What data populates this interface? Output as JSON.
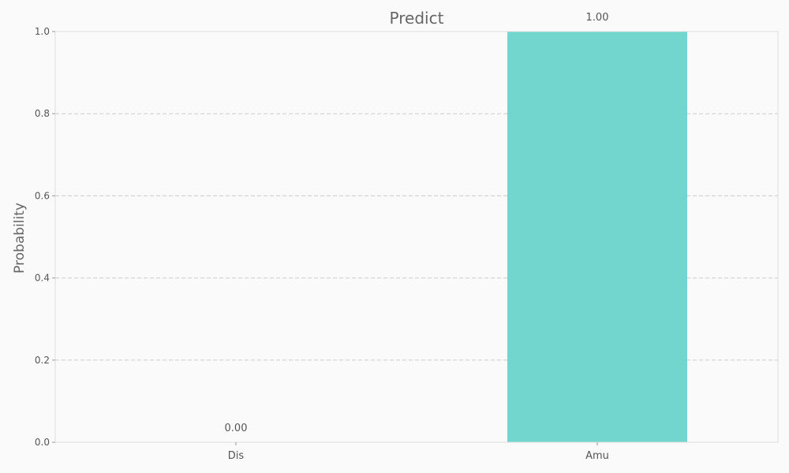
{
  "chart_data": {
    "type": "bar",
    "title": "Predict",
    "xlabel": "",
    "ylabel": "Probability",
    "categories": [
      "Dis",
      "Amu"
    ],
    "values": [
      0.0,
      1.0
    ],
    "value_labels": [
      "0.00",
      "1.00"
    ],
    "ylim": [
      0,
      1.0
    ],
    "yticks": [
      0.0,
      0.2,
      0.4,
      0.6,
      0.8,
      1.0
    ],
    "ytick_labels": [
      "0.0",
      "0.2",
      "0.4",
      "0.6",
      "0.8",
      "1.0"
    ],
    "grid": "y, dashed",
    "legend": "none",
    "colors": {
      "bar": "#72d6cf",
      "grid": "#cccccc",
      "axis": "#dddddd",
      "text": "#555555",
      "title": "#666666",
      "background": "#fafafa"
    }
  }
}
